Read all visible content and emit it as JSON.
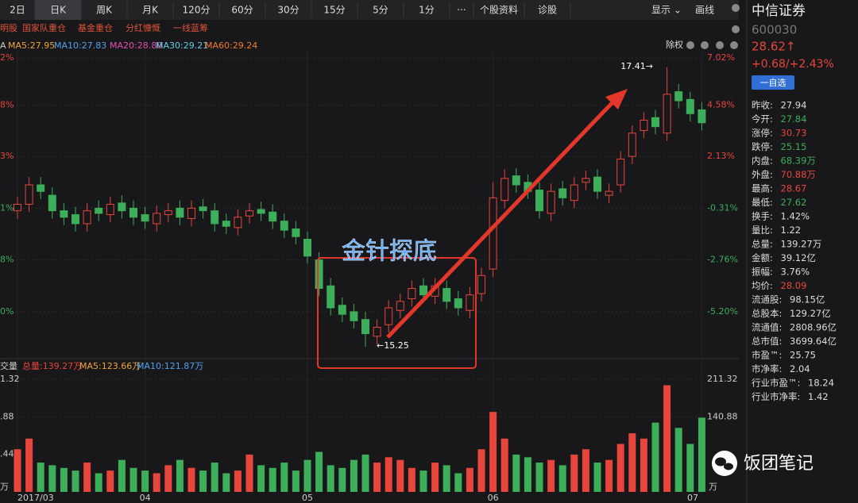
{
  "toolbar": {
    "tabs": [
      "2日",
      "日K",
      "周K",
      "月K",
      "120分",
      "60分",
      "30分",
      "15分",
      "5分",
      "1分",
      "···",
      "个股资料",
      "诊股"
    ],
    "right": [
      "显示 ⌄",
      "画线"
    ]
  },
  "tags": [
    "明股",
    "国家队重仓",
    "基金重仓",
    "分红慷慨",
    "一线蓝筹"
  ],
  "ma_legend": [
    {
      "text": "A",
      "color": "#cccccc"
    },
    {
      "text": "MA5:27.95",
      "color": "#f0a43c"
    },
    {
      "text": "MA10:27.83",
      "color": "#4fa3f0"
    },
    {
      "text": "MA20:28.80",
      "color": "#e04fb0"
    },
    {
      "text": "MA30:29.21",
      "color": "#5fd0e8"
    },
    {
      "text": "MA60:29.24",
      "color": "#f07a2c"
    }
  ],
  "chart_top_right": "除权",
  "chart_data": {
    "type": "candlestick",
    "categories": [
      "2017/03",
      null,
      null,
      null,
      null,
      null,
      null,
      null,
      null,
      null,
      null,
      "04",
      null,
      null,
      null,
      null,
      null,
      null,
      null,
      null,
      null,
      null,
      null,
      null,
      null,
      "05",
      null,
      null,
      null,
      null,
      null,
      null,
      null,
      null,
      null,
      null,
      null,
      null,
      null,
      null,
      null,
      "06",
      null,
      null,
      null,
      null,
      null,
      null,
      null,
      null,
      null,
      null,
      null,
      null,
      null,
      null,
      null,
      null,
      null,
      "07"
    ],
    "open": [
      16.3,
      16.35,
      16.5,
      16.42,
      16.3,
      16.27,
      16.2,
      16.32,
      16.27,
      16.36,
      16.32,
      16.27,
      16.2,
      16.27,
      16.32,
      16.24,
      16.33,
      16.3,
      16.22,
      16.17,
      16.26,
      16.31,
      16.29,
      16.22,
      16.16,
      16.08,
      15.92,
      15.72,
      15.57,
      15.52,
      15.46,
      15.33,
      15.42,
      15.53,
      15.62,
      15.72,
      15.64,
      15.7,
      15.62,
      15.53,
      15.66,
      15.85,
      16.38,
      16.57,
      16.52,
      16.46,
      16.28,
      16.47,
      16.38,
      16.52,
      16.56,
      16.42,
      16.5,
      16.72,
      16.92,
      17.02,
      16.9,
      17.22,
      17.16,
      17.08
    ],
    "high": [
      16.41,
      16.56,
      16.56,
      16.48,
      16.36,
      16.33,
      16.36,
      16.38,
      16.41,
      16.42,
      16.38,
      16.33,
      16.34,
      16.36,
      16.38,
      16.38,
      16.39,
      16.36,
      16.28,
      16.31,
      16.36,
      16.37,
      16.35,
      16.28,
      16.22,
      16.14,
      15.98,
      15.78,
      15.63,
      15.58,
      15.52,
      15.46,
      15.61,
      15.66,
      15.76,
      15.78,
      15.78,
      15.76,
      15.68,
      15.71,
      15.86,
      16.52,
      16.62,
      16.63,
      16.58,
      16.52,
      16.51,
      16.53,
      16.56,
      16.61,
      16.62,
      16.51,
      16.76,
      16.96,
      17.06,
      17.08,
      17.41,
      17.28,
      17.22,
      17.14
    ],
    "low": [
      16.24,
      16.29,
      16.39,
      16.24,
      16.19,
      16.14,
      16.14,
      16.22,
      16.21,
      16.24,
      16.19,
      16.16,
      16.14,
      16.21,
      16.19,
      16.18,
      16.24,
      16.14,
      16.12,
      16.11,
      16.2,
      16.22,
      16.16,
      16.09,
      16.04,
      15.89,
      15.64,
      15.49,
      15.44,
      15.39,
      15.25,
      15.27,
      15.36,
      15.47,
      15.56,
      15.59,
      15.58,
      15.54,
      15.49,
      15.47,
      15.6,
      15.79,
      16.32,
      16.44,
      16.39,
      16.24,
      16.22,
      16.34,
      16.32,
      16.46,
      16.39,
      16.36,
      16.44,
      16.66,
      16.86,
      16.89,
      16.84,
      17.09,
      16.99,
      16.92
    ],
    "close": [
      16.35,
      16.5,
      16.45,
      16.3,
      16.25,
      16.2,
      16.3,
      16.28,
      16.35,
      16.3,
      16.25,
      16.22,
      16.28,
      16.3,
      16.25,
      16.32,
      16.3,
      16.2,
      16.18,
      16.25,
      16.3,
      16.28,
      16.22,
      16.15,
      16.1,
      15.95,
      15.7,
      15.55,
      15.5,
      15.45,
      15.35,
      15.4,
      15.55,
      15.6,
      15.7,
      15.65,
      15.72,
      15.6,
      15.55,
      15.65,
      15.8,
      16.4,
      16.55,
      16.5,
      16.45,
      16.3,
      16.45,
      16.4,
      16.5,
      16.55,
      16.45,
      16.45,
      16.7,
      16.9,
      17.0,
      16.95,
      17.2,
      17.15,
      17.05,
      16.98
    ],
    "up_color": "#e8453c",
    "down_color": "#3dae5a",
    "ylim": [
      15.17,
      17.53
    ],
    "yticks": [
      {
        "value": 17.48,
        "label": "7.02%"
      },
      {
        "value": 17.115,
        "label": "4.58%"
      },
      {
        "value": 16.72,
        "label": "2.13%"
      },
      {
        "value": 16.32,
        "label": "-0.31%"
      },
      {
        "value": 15.92,
        "label": "-2.76%"
      },
      {
        "value": 15.52,
        "label": "-5.20%"
      }
    ],
    "yticks_left": [
      {
        "value": 17.48,
        "label": "2%"
      },
      {
        "value": 17.115,
        "label": "8%"
      },
      {
        "value": 16.72,
        "label": "3%"
      },
      {
        "value": 16.32,
        "label": "1%"
      },
      {
        "value": 15.92,
        "label": "8%"
      },
      {
        "value": 15.52,
        "label": "0%"
      }
    ],
    "ytick_colors": [
      "#e8453c",
      "#e8453c",
      "#e8453c",
      "#3dae5a",
      "#3dae5a",
      "#3dae5a"
    ],
    "annotations": {
      "high": "17.41→",
      "low": "←15.25",
      "pattern": "金针探底"
    },
    "volume": {
      "legend": [
        {
          "text": "交量",
          "color": "#cccccc"
        },
        {
          "text": "总量:139.27万",
          "color": "#e8453c"
        },
        {
          "text": "MA5:123.66万",
          "color": "#f0a43c"
        },
        {
          "text": "MA10:121.87万",
          "color": "#4fa3f0"
        }
      ],
      "values": [
        80,
        100,
        55,
        50,
        45,
        40,
        55,
        35,
        40,
        60,
        45,
        40,
        35,
        50,
        60,
        45,
        40,
        55,
        35,
        40,
        70,
        50,
        45,
        55,
        40,
        60,
        75,
        50,
        45,
        60,
        70,
        55,
        65,
        60,
        45,
        40,
        55,
        50,
        35,
        45,
        80,
        150,
        100,
        70,
        65,
        55,
        60,
        50,
        70,
        80,
        55,
        60,
        90,
        110,
        100,
        130,
        200,
        120,
        90,
        139.27
      ],
      "ylim": [
        0,
        211.32
      ],
      "yticks": [
        211.32,
        140.88
      ],
      "yticks_left": [
        {
          "value": 211.32,
          "label": "1.32"
        },
        {
          "value": 140.88,
          "label": ".88"
        },
        {
          "value": 70.44,
          "label": ".44"
        }
      ],
      "unit": "万"
    }
  },
  "quote": {
    "name": "中信证券",
    "code": "600030",
    "price": "28.62↑",
    "change": "+0.68/+2.43%",
    "button": "一自选",
    "fields": [
      {
        "label": "昨收:",
        "value": "27.94",
        "color": "#dddddd"
      },
      {
        "label": "今开:",
        "value": "27.84",
        "color": "#3dae5a"
      },
      {
        "label": "涨停:",
        "value": "30.73",
        "color": "#e8453c"
      },
      {
        "label": "跌停:",
        "value": "25.15",
        "color": "#3dae5a"
      },
      {
        "label": "内盘:",
        "value": "68.39万",
        "color": "#3dae5a"
      },
      {
        "label": "外盘:",
        "value": "70.88万",
        "color": "#e8453c"
      },
      {
        "label": "最高:",
        "value": "28.67",
        "color": "#e8453c"
      },
      {
        "label": "最低:",
        "value": "27.62",
        "color": "#3dae5a"
      },
      {
        "label": "换手:",
        "value": "1.42%",
        "color": "#dddddd"
      },
      {
        "label": "量比:",
        "value": "1.22",
        "color": "#dddddd"
      },
      {
        "label": "总量:",
        "value": "139.27万",
        "color": "#dddddd"
      },
      {
        "label": "金额:",
        "value": "39.12亿",
        "color": "#dddddd"
      },
      {
        "label": "振幅:",
        "value": "3.76%",
        "color": "#dddddd"
      },
      {
        "label": "均价:",
        "value": "28.09",
        "color": "#e8453c"
      },
      {
        "label": "流通股:",
        "value": "98.15亿",
        "color": "#dddddd"
      },
      {
        "label": "总股本:",
        "value": "129.27亿",
        "color": "#dddddd"
      },
      {
        "label": "流通值:",
        "value": "2808.96亿",
        "color": "#dddddd"
      },
      {
        "label": "总市值:",
        "value": "3699.64亿",
        "color": "#dddddd"
      },
      {
        "label": "市盈™:",
        "value": "25.75",
        "color": "#dddddd"
      },
      {
        "label": "市净率:",
        "value": "2.04",
        "color": "#dddddd"
      },
      {
        "label": "行业市盈™:",
        "value": "18.24",
        "color": "#dddddd"
      },
      {
        "label": "行业市净率:",
        "value": "1.42",
        "color": "#dddddd"
      }
    ]
  },
  "watermark": "饭团笔记"
}
